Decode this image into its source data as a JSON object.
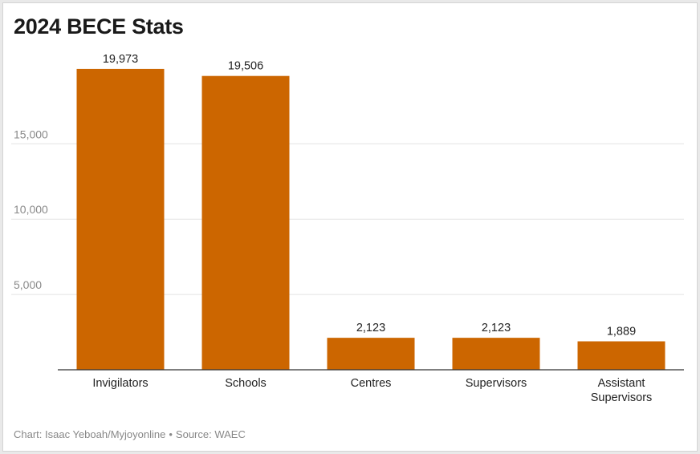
{
  "chart_data": {
    "type": "bar",
    "title": "2024 BECE Stats",
    "categories": [
      "Invigilators",
      "Schools",
      "Centres",
      "Supervisors",
      "Assistant Supervisors"
    ],
    "category_lines": [
      [
        "Invigilators"
      ],
      [
        "Schools"
      ],
      [
        "Centres"
      ],
      [
        "Supervisors"
      ],
      [
        "Assistant",
        "Supervisors"
      ]
    ],
    "values": [
      19973,
      19506,
      2123,
      2123,
      1889
    ],
    "value_labels": [
      "19,973",
      "19,506",
      "2,123",
      "2,123",
      "1,889"
    ],
    "yticks": [
      5000,
      10000,
      15000
    ],
    "ytick_labels": [
      "5,000",
      "10,000",
      "15,000"
    ],
    "ylim": [
      0,
      21300
    ],
    "grid": true,
    "bar_color": "#cc6600",
    "xlabel": "",
    "ylabel": ""
  },
  "footer": {
    "credit": "Chart: Isaac Yeboah/Myjoyonline",
    "separator": "•",
    "source": "Source: WAEC"
  }
}
